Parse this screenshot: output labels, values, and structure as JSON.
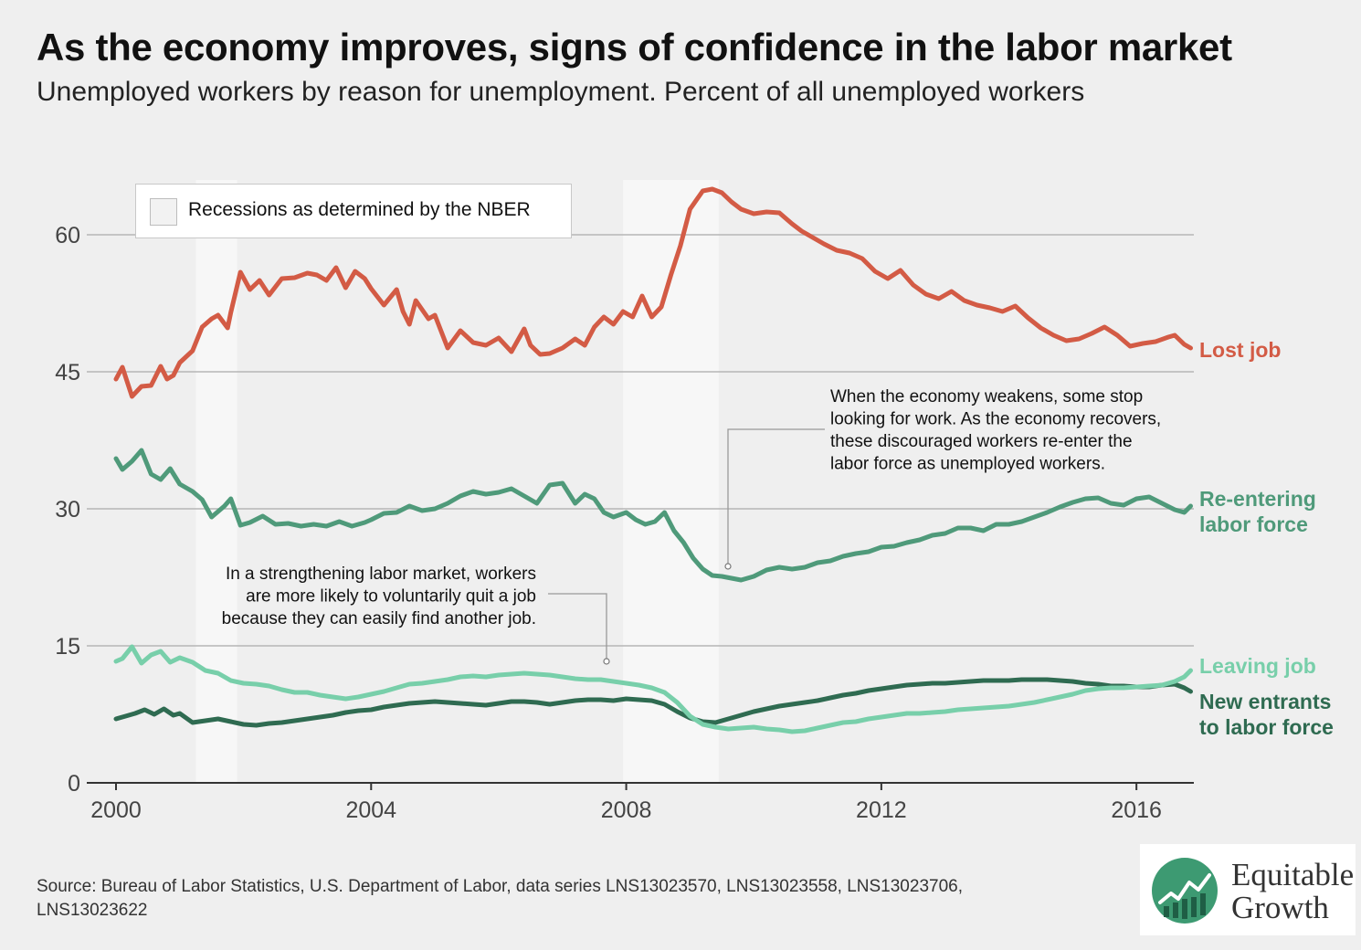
{
  "header": {
    "title": "As the economy improves, signs of confidence in the labor market",
    "subtitle": "Unemployed workers by reason for unemployment. Percent of all unemployed workers"
  },
  "legend": {
    "label": "Recessions as determined by the NBER"
  },
  "annotations": {
    "discouraged": [
      "When the economy weakens, some stop",
      "looking for work. As the economy recovers,",
      "these discouraged workers re-enter the",
      "labor force as unemployed workers."
    ],
    "quit": [
      "In a strengthening labor market, workers",
      "are more  likely to voluntarily quit a job",
      "because they can easily find another job."
    ]
  },
  "series_labels": {
    "lost_job": [
      "Lost job"
    ],
    "reentering": [
      "Re-entering",
      "labor force"
    ],
    "leaving": [
      "Leaving job"
    ],
    "new_entrants": [
      "New entrants",
      "to labor force"
    ]
  },
  "footer": {
    "source": "Source: Bureau of Labor Statistics, U.S. Department of Labor, data series LNS13023570, LNS13023558, LNS13023706, LNS13023622"
  },
  "logo": {
    "line1": "Equitable",
    "line2": "Growth"
  },
  "colors": {
    "lost_job": "#d35b45",
    "reentering": "#4f9a7a",
    "leaving": "#78cfaa",
    "new_entrants": "#2f6b51",
    "recession": "#f7f7f7",
    "grid": "#b5b5b5"
  },
  "chart_data": {
    "type": "line",
    "x_unit": "year",
    "xlim": [
      2000.0,
      2016.9
    ],
    "ylim": [
      0,
      66
    ],
    "x_ticks": [
      2000,
      2004,
      2008,
      2012,
      2016
    ],
    "y_ticks": [
      0,
      15,
      30,
      45,
      60
    ],
    "grid": true,
    "recessions": [
      [
        2001.25,
        2001.9
      ],
      [
        2007.95,
        2009.45
      ]
    ],
    "series": [
      {
        "key": "lost_job",
        "name": "Lost job",
        "x": [
          2000.0,
          2000.1,
          2000.25,
          2000.4,
          2000.55,
          2000.7,
          2000.8,
          2000.9,
          2001.0,
          2001.2,
          2001.35,
          2001.5,
          2001.6,
          2001.75,
          2001.8,
          2001.95,
          2002.1,
          2002.25,
          2002.4,
          2002.6,
          2002.8,
          2003.0,
          2003.15,
          2003.3,
          2003.45,
          2003.6,
          2003.75,
          2003.9,
          2004.0,
          2004.2,
          2004.4,
          2004.5,
          2004.6,
          2004.7,
          2004.9,
          2005.0,
          2005.2,
          2005.4,
          2005.6,
          2005.8,
          2006.0,
          2006.2,
          2006.4,
          2006.5,
          2006.65,
          2006.8,
          2007.0,
          2007.2,
          2007.35,
          2007.5,
          2007.65,
          2007.8,
          2007.95,
          2008.1,
          2008.25,
          2008.4,
          2008.55,
          2008.7,
          2008.85,
          2009.0,
          2009.2,
          2009.35,
          2009.5,
          2009.65,
          2009.8,
          2010.0,
          2010.2,
          2010.4,
          2010.6,
          2010.75,
          2010.9,
          2011.1,
          2011.3,
          2011.5,
          2011.7,
          2011.9,
          2012.1,
          2012.3,
          2012.5,
          2012.7,
          2012.9,
          2013.1,
          2013.3,
          2013.5,
          2013.7,
          2013.9,
          2014.1,
          2014.3,
          2014.5,
          2014.7,
          2014.9,
          2015.1,
          2015.3,
          2015.5,
          2015.7,
          2015.9,
          2016.1,
          2016.3,
          2016.5,
          2016.6,
          2016.75,
          2016.85
        ],
        "y": [
          44.2,
          45.5,
          42.3,
          43.4,
          43.5,
          45.6,
          44.2,
          44.6,
          46.0,
          47.3,
          49.9,
          50.8,
          51.2,
          49.8,
          51.5,
          55.9,
          54.0,
          55.0,
          53.4,
          55.2,
          55.3,
          55.8,
          55.6,
          55.0,
          56.4,
          54.2,
          56.0,
          55.2,
          54.1,
          52.3,
          54.0,
          51.6,
          50.2,
          52.8,
          50.8,
          51.2,
          47.6,
          49.5,
          48.2,
          47.9,
          48.7,
          47.2,
          49.7,
          47.9,
          46.9,
          47.0,
          47.6,
          48.6,
          47.9,
          49.9,
          51.0,
          50.2,
          51.6,
          51.0,
          53.3,
          51.0,
          52.1,
          55.6,
          58.8,
          62.8,
          64.8,
          65.0,
          64.6,
          63.6,
          62.8,
          62.3,
          62.5,
          62.4,
          61.2,
          60.4,
          59.8,
          59.0,
          58.3,
          58.0,
          57.4,
          56.0,
          55.2,
          56.1,
          54.5,
          53.5,
          53.0,
          53.8,
          52.8,
          52.3,
          52.0,
          51.6,
          52.2,
          50.9,
          49.8,
          49.0,
          48.4,
          48.6,
          49.2,
          49.9,
          49.0,
          47.8,
          48.1,
          48.3,
          48.8,
          49.0,
          48.0,
          47.6
        ]
      },
      {
        "key": "reentering",
        "name": "Re-entering labor force",
        "x": [
          2000.0,
          2000.1,
          2000.25,
          2000.4,
          2000.55,
          2000.7,
          2000.85,
          2001.0,
          2001.2,
          2001.35,
          2001.5,
          2001.7,
          2001.8,
          2001.95,
          2002.1,
          2002.3,
          2002.5,
          2002.7,
          2002.9,
          2003.1,
          2003.3,
          2003.5,
          2003.7,
          2003.9,
          2004.0,
          2004.2,
          2004.4,
          2004.6,
          2004.8,
          2005.0,
          2005.2,
          2005.4,
          2005.6,
          2005.8,
          2006.0,
          2006.2,
          2006.4,
          2006.6,
          2006.8,
          2007.0,
          2007.2,
          2007.35,
          2007.5,
          2007.65,
          2007.8,
          2008.0,
          2008.15,
          2008.3,
          2008.45,
          2008.6,
          2008.75,
          2008.9,
          2009.05,
          2009.2,
          2009.35,
          2009.5,
          2009.65,
          2009.8,
          2010.0,
          2010.2,
          2010.4,
          2010.6,
          2010.8,
          2011.0,
          2011.2,
          2011.4,
          2011.6,
          2011.8,
          2012.0,
          2012.2,
          2012.4,
          2012.6,
          2012.8,
          2013.0,
          2013.2,
          2013.4,
          2013.6,
          2013.8,
          2014.0,
          2014.2,
          2014.4,
          2014.6,
          2014.8,
          2015.0,
          2015.2,
          2015.4,
          2015.6,
          2015.8,
          2016.0,
          2016.2,
          2016.4,
          2016.6,
          2016.75,
          2016.85
        ],
        "y": [
          35.5,
          34.3,
          35.2,
          36.4,
          33.8,
          33.2,
          34.4,
          32.7,
          31.9,
          31.0,
          29.1,
          30.3,
          31.1,
          28.2,
          28.5,
          29.2,
          28.3,
          28.4,
          28.1,
          28.3,
          28.1,
          28.6,
          28.1,
          28.5,
          28.8,
          29.5,
          29.6,
          30.3,
          29.8,
          30.0,
          30.6,
          31.4,
          31.9,
          31.6,
          31.8,
          32.2,
          31.4,
          30.6,
          32.6,
          32.8,
          30.6,
          31.6,
          31.1,
          29.6,
          29.1,
          29.6,
          28.8,
          28.3,
          28.6,
          29.6,
          27.6,
          26.3,
          24.6,
          23.4,
          22.7,
          22.6,
          22.4,
          22.2,
          22.6,
          23.3,
          23.6,
          23.4,
          23.6,
          24.1,
          24.3,
          24.8,
          25.1,
          25.3,
          25.8,
          25.9,
          26.3,
          26.6,
          27.1,
          27.3,
          27.9,
          27.9,
          27.6,
          28.3,
          28.3,
          28.6,
          29.1,
          29.6,
          30.2,
          30.7,
          31.1,
          31.2,
          30.6,
          30.4,
          31.1,
          31.3,
          30.6,
          29.9,
          29.6,
          30.3
        ]
      },
      {
        "key": "leaving",
        "name": "Leaving job",
        "x": [
          2000.0,
          2000.1,
          2000.25,
          2000.4,
          2000.55,
          2000.7,
          2000.85,
          2001.0,
          2001.2,
          2001.4,
          2001.6,
          2001.8,
          2002.0,
          2002.2,
          2002.4,
          2002.6,
          2002.8,
          2003.0,
          2003.2,
          2003.4,
          2003.6,
          2003.8,
          2004.0,
          2004.2,
          2004.4,
          2004.6,
          2004.8,
          2005.0,
          2005.2,
          2005.4,
          2005.6,
          2005.8,
          2006.0,
          2006.2,
          2006.4,
          2006.6,
          2006.8,
          2007.0,
          2007.2,
          2007.4,
          2007.6,
          2007.8,
          2008.0,
          2008.2,
          2008.4,
          2008.6,
          2008.8,
          2009.0,
          2009.2,
          2009.4,
          2009.6,
          2009.8,
          2010.0,
          2010.2,
          2010.4,
          2010.6,
          2010.8,
          2011.0,
          2011.2,
          2011.4,
          2011.6,
          2011.8,
          2012.0,
          2012.2,
          2012.4,
          2012.6,
          2012.8,
          2013.0,
          2013.2,
          2013.4,
          2013.6,
          2013.8,
          2014.0,
          2014.2,
          2014.4,
          2014.6,
          2014.8,
          2015.0,
          2015.2,
          2015.4,
          2015.6,
          2015.8,
          2016.0,
          2016.2,
          2016.4,
          2016.6,
          2016.75,
          2016.85
        ],
        "y": [
          13.3,
          13.6,
          14.9,
          13.1,
          14.0,
          14.4,
          13.2,
          13.7,
          13.2,
          12.3,
          12.0,
          11.2,
          10.9,
          10.8,
          10.6,
          10.2,
          9.9,
          9.9,
          9.6,
          9.4,
          9.2,
          9.4,
          9.7,
          10.0,
          10.4,
          10.8,
          10.9,
          11.1,
          11.3,
          11.6,
          11.7,
          11.6,
          11.8,
          11.9,
          12.0,
          11.9,
          11.8,
          11.6,
          11.4,
          11.3,
          11.3,
          11.1,
          10.9,
          10.7,
          10.4,
          9.9,
          8.8,
          7.3,
          6.4,
          6.1,
          5.9,
          6.0,
          6.1,
          5.9,
          5.8,
          5.6,
          5.7,
          6.0,
          6.3,
          6.6,
          6.7,
          7.0,
          7.2,
          7.4,
          7.6,
          7.6,
          7.7,
          7.8,
          8.0,
          8.1,
          8.2,
          8.3,
          8.4,
          8.6,
          8.8,
          9.1,
          9.4,
          9.7,
          10.1,
          10.3,
          10.4,
          10.4,
          10.5,
          10.6,
          10.7,
          11.1,
          11.6,
          12.3
        ]
      },
      {
        "key": "new_entrants",
        "name": "New entrants to labor force",
        "x": [
          2000.0,
          2000.15,
          2000.3,
          2000.45,
          2000.6,
          2000.75,
          2000.9,
          2001.0,
          2001.2,
          2001.4,
          2001.6,
          2001.8,
          2002.0,
          2002.2,
          2002.4,
          2002.6,
          2002.8,
          2003.0,
          2003.2,
          2003.4,
          2003.6,
          2003.8,
          2004.0,
          2004.2,
          2004.4,
          2004.6,
          2004.8,
          2005.0,
          2005.2,
          2005.4,
          2005.6,
          2005.8,
          2006.0,
          2006.2,
          2006.4,
          2006.6,
          2006.8,
          2007.0,
          2007.2,
          2007.4,
          2007.6,
          2007.8,
          2008.0,
          2008.2,
          2008.4,
          2008.6,
          2008.8,
          2009.0,
          2009.2,
          2009.4,
          2009.6,
          2009.8,
          2010.0,
          2010.2,
          2010.4,
          2010.6,
          2010.8,
          2011.0,
          2011.2,
          2011.4,
          2011.6,
          2011.8,
          2012.0,
          2012.2,
          2012.4,
          2012.6,
          2012.8,
          2013.0,
          2013.2,
          2013.4,
          2013.6,
          2013.8,
          2014.0,
          2014.2,
          2014.4,
          2014.6,
          2014.8,
          2015.0,
          2015.2,
          2015.4,
          2015.6,
          2015.8,
          2016.0,
          2016.2,
          2016.4,
          2016.6,
          2016.75,
          2016.85
        ],
        "y": [
          7.0,
          7.3,
          7.6,
          8.0,
          7.5,
          8.1,
          7.4,
          7.6,
          6.6,
          6.8,
          7.0,
          6.7,
          6.4,
          6.3,
          6.5,
          6.6,
          6.8,
          7.0,
          7.2,
          7.4,
          7.7,
          7.9,
          8.0,
          8.3,
          8.5,
          8.7,
          8.8,
          8.9,
          8.8,
          8.7,
          8.6,
          8.5,
          8.7,
          8.9,
          8.9,
          8.8,
          8.6,
          8.8,
          9.0,
          9.1,
          9.1,
          9.0,
          9.2,
          9.1,
          9.0,
          8.6,
          7.8,
          7.1,
          6.7,
          6.6,
          7.0,
          7.4,
          7.8,
          8.1,
          8.4,
          8.6,
          8.8,
          9.0,
          9.3,
          9.6,
          9.8,
          10.1,
          10.3,
          10.5,
          10.7,
          10.8,
          10.9,
          10.9,
          11.0,
          11.1,
          11.2,
          11.2,
          11.2,
          11.3,
          11.3,
          11.3,
          11.2,
          11.1,
          10.9,
          10.8,
          10.6,
          10.6,
          10.5,
          10.5,
          10.7,
          10.8,
          10.4,
          10.0
        ]
      }
    ]
  }
}
